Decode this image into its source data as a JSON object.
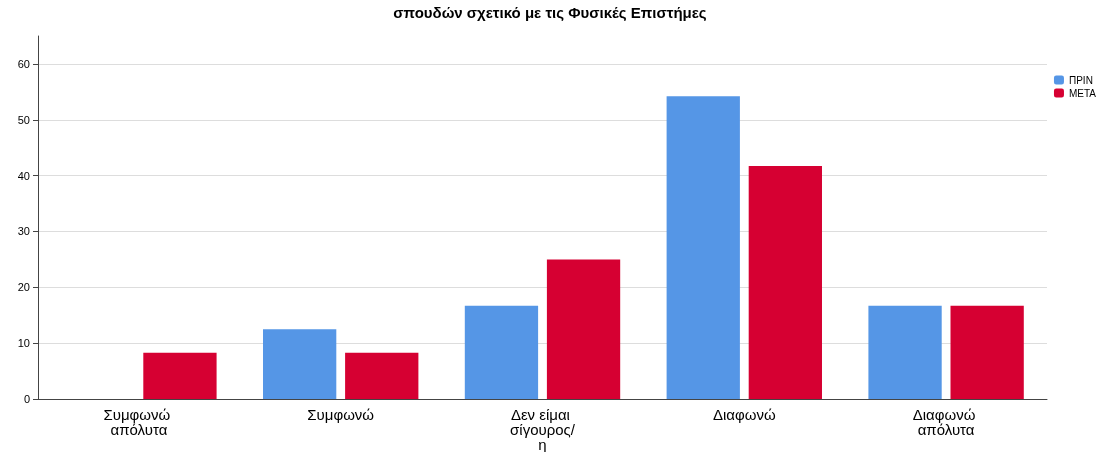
{
  "chart_data": {
    "type": "bar",
    "title": "σπουδών σχετικό με τις Φυσικές Επιστήμες",
    "categories": [
      "Συμφωνώ απόλυτα",
      "Συμφωνώ",
      "Δεν είμαι σίγουρος/η",
      "Διαφωνώ",
      "Διαφωνώ απόλυτα"
    ],
    "series": [
      {
        "name": "ΠΡΙΝ",
        "color": "#5596e6",
        "values": [
          0,
          12.5,
          16.7,
          54.2,
          16.7
        ]
      },
      {
        "name": "ΜΕΤΑ",
        "color": "#d60032",
        "values": [
          8.3,
          8.3,
          25,
          41.7,
          16.7
        ]
      }
    ],
    "ylim": [
      0,
      65
    ],
    "yticks": [
      0,
      10,
      20,
      30,
      40,
      50,
      60
    ],
    "grid": "y",
    "legend": "top right"
  }
}
